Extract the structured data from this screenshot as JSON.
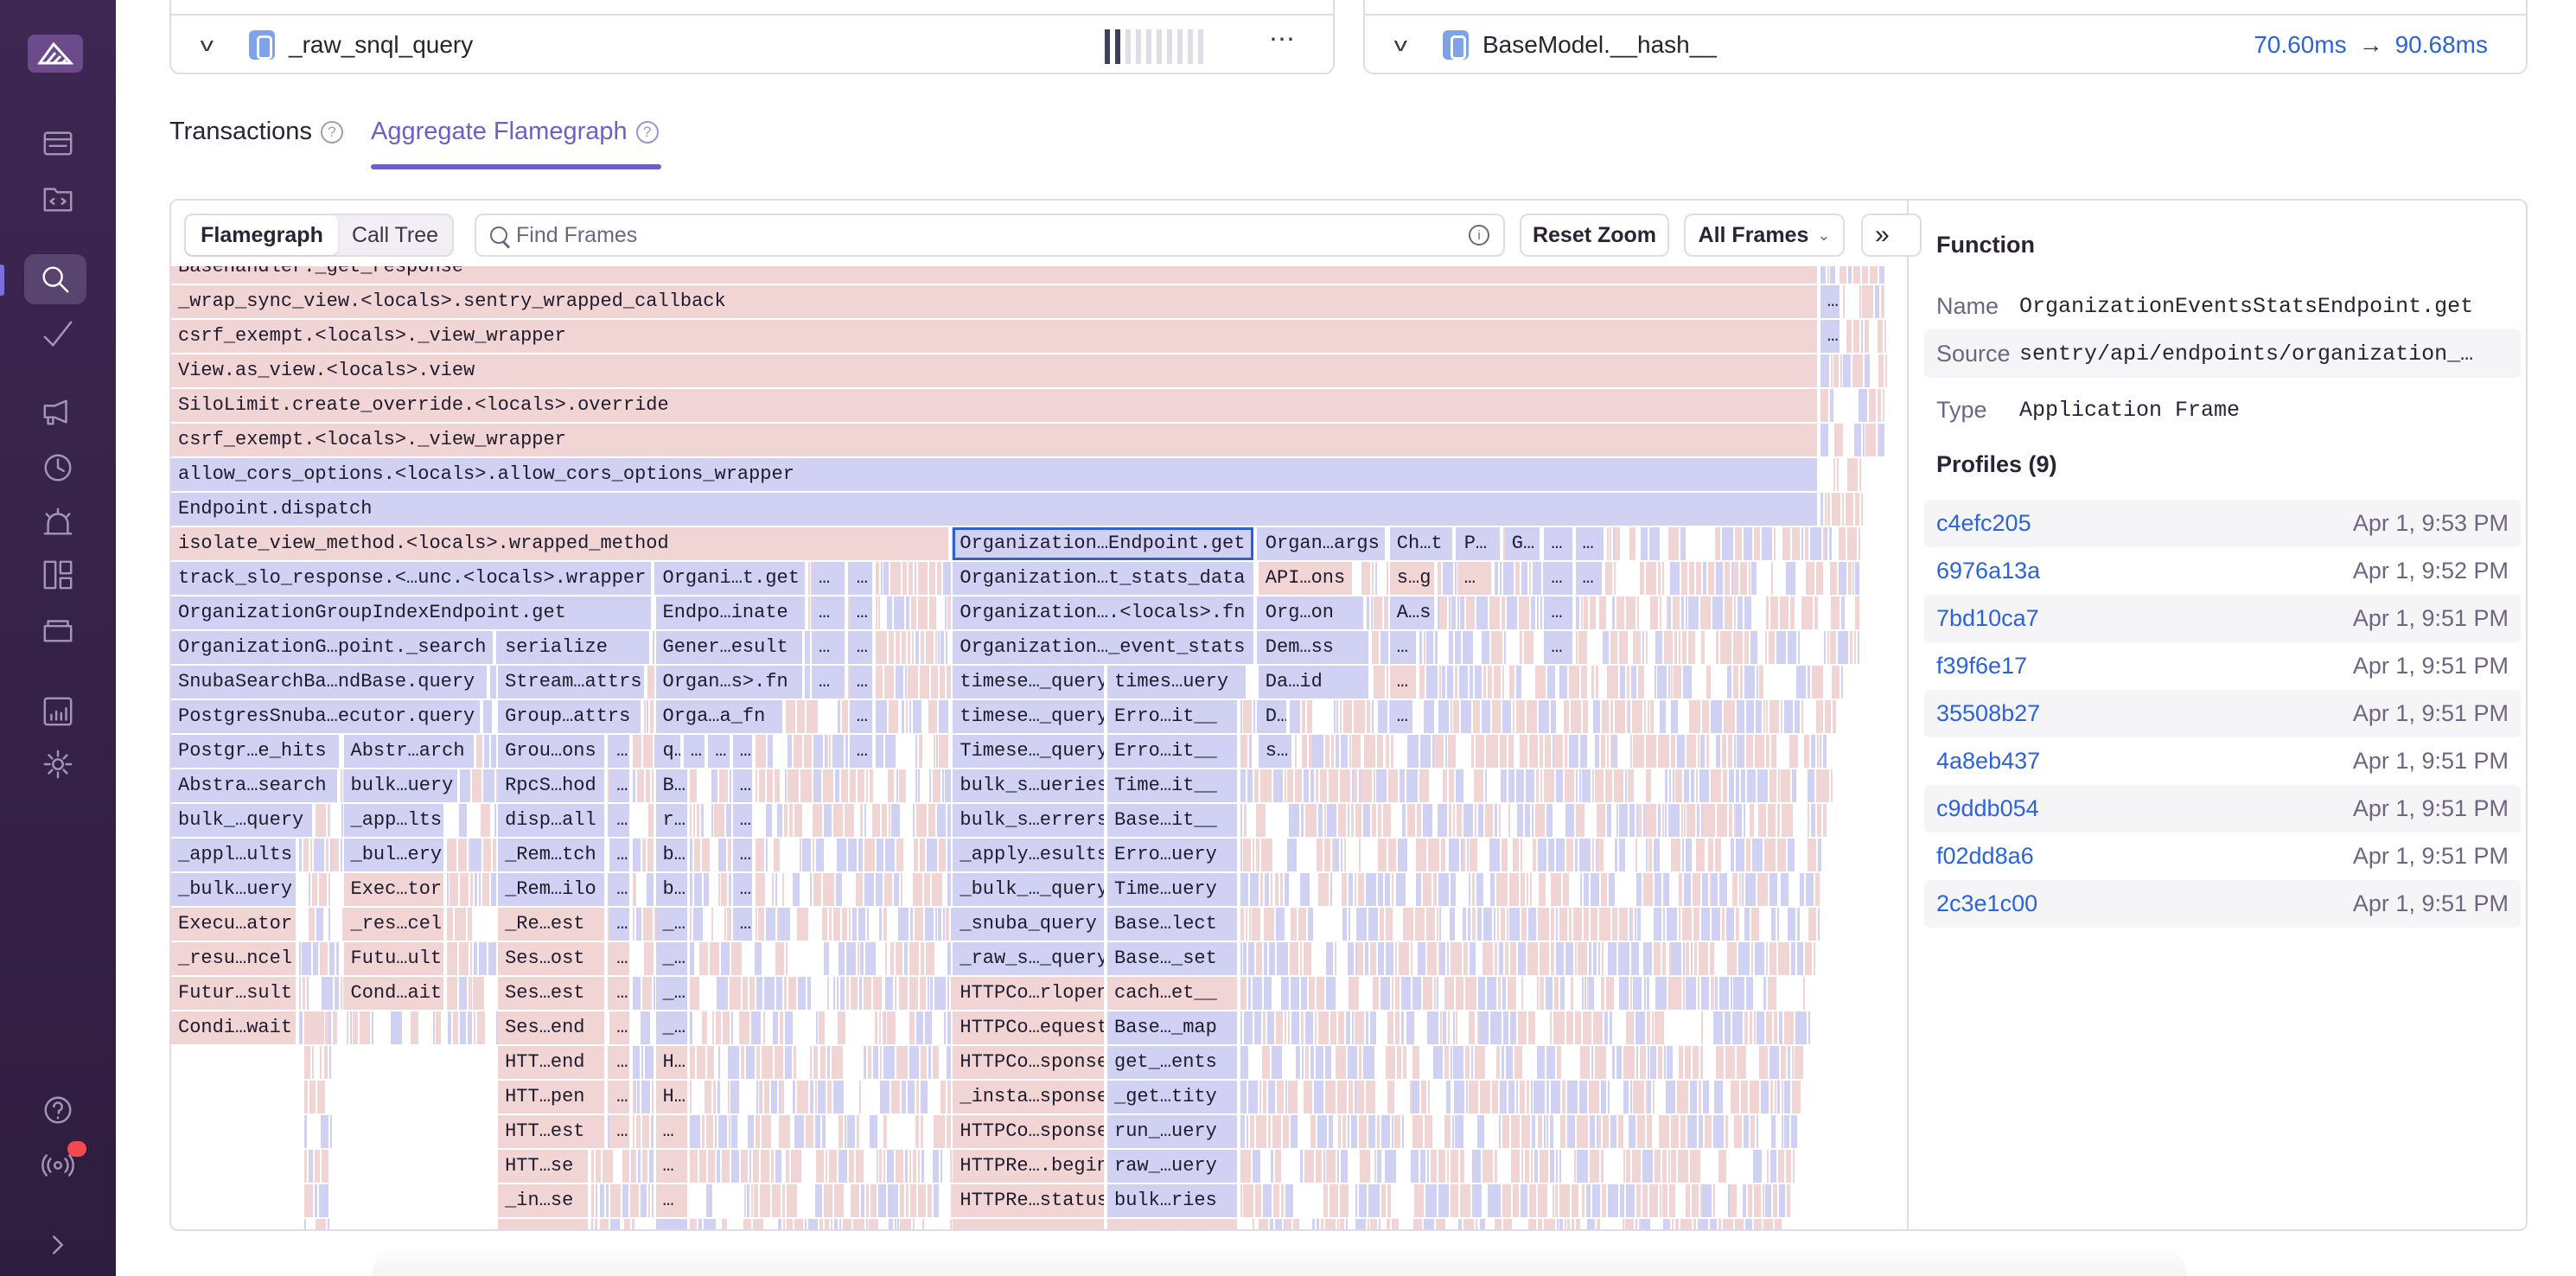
{
  "top_cards": [
    {
      "function": "_raw_snql_query",
      "icon": "python-icon",
      "more": "⋯"
    },
    {
      "function": "BaseModel.__hash__",
      "icon": "python-icon",
      "duration_before": "70.60ms",
      "arrow": "→",
      "duration_after": "90.68ms"
    }
  ],
  "tabs": [
    {
      "label": "Transactions",
      "help": "?",
      "active": false
    },
    {
      "label": "Aggregate Flamegraph",
      "help": "?",
      "active": true
    }
  ],
  "toolbar": {
    "view_options": [
      "Flamegraph",
      "Call Tree"
    ],
    "selected_view": "Flamegraph",
    "search_placeholder": "Find Frames",
    "search_value": "",
    "info": "i",
    "reset_zoom": "Reset Zoom",
    "frames_filter": "All Frames",
    "frames_filter_chevron": "⌄",
    "collapse": "»"
  },
  "colors": {
    "application_frame": "#f1d4d4",
    "system_frame": "#d1d1f3",
    "accent": "#6c5fc7",
    "link": "#2b63d9",
    "selected_frame_border": "#2f62d1"
  },
  "flamegraph": {
    "selected_frame": "OrganizationEventsStatsEndpoint.get",
    "rows": [
      [
        {
          "l": "BaseHandler._get_response",
          "k": "p"
        }
      ],
      [
        {
          "l": "_wrap_sync_view.<locals>.sentry_wrapped_callback",
          "k": "p"
        },
        {
          "l": "…",
          "k": "b"
        }
      ],
      [
        {
          "l": "csrf_exempt.<locals>._view_wrapper",
          "k": "p"
        },
        {
          "l": "…",
          "k": "b"
        }
      ],
      [
        {
          "l": "View.as_view.<locals>.view",
          "k": "p"
        }
      ],
      [
        {
          "l": "SiloLimit.create_override.<locals>.override",
          "k": "p"
        }
      ],
      [
        {
          "l": "csrf_exempt.<locals>._view_wrapper",
          "k": "p"
        }
      ],
      [
        {
          "l": "allow_cors_options.<locals>.allow_cors_options_wrapper",
          "k": "b"
        }
      ],
      [
        {
          "l": "Endpoint.dispatch",
          "k": "b"
        }
      ],
      [
        {
          "l": "isolate_view_method.<locals>.wrapped_method",
          "k": "p"
        },
        {
          "l": "Organization…Endpoint.get",
          "k": "b",
          "sel": true
        },
        {
          "l": "Organ…args",
          "k": "b"
        },
        {
          "l": "Ch…t",
          "k": "b"
        },
        {
          "l": "P…",
          "k": "b"
        },
        {
          "l": "G…",
          "k": "b"
        },
        {
          "l": "…",
          "k": "b"
        },
        {
          "l": "…",
          "k": "b"
        }
      ],
      [
        {
          "l": "track_slo_response.<…unc.<locals>.wrapper",
          "k": "b"
        },
        {
          "l": "Organi…t.get",
          "k": "b"
        },
        {
          "l": "…",
          "k": "b"
        },
        {
          "l": "…",
          "k": "b"
        },
        {
          "l": "Organization…t_stats_data",
          "k": "b"
        },
        {
          "l": "API…ons",
          "k": "p"
        },
        {
          "l": "s…g",
          "k": "p"
        },
        {
          "l": "…",
          "k": "p"
        },
        {
          "l": "…",
          "k": "b"
        },
        {
          "l": "…",
          "k": "b"
        }
      ],
      [
        {
          "l": "OrganizationGroupIndexEndpoint.get",
          "k": "b"
        },
        {
          "l": "Endpo…inate",
          "k": "b"
        },
        {
          "l": "…",
          "k": "b"
        },
        {
          "l": "…",
          "k": "b"
        },
        {
          "l": "Organization….<locals>.fn",
          "k": "b"
        },
        {
          "l": "Org…on",
          "k": "b"
        },
        {
          "l": "A…s",
          "k": "b"
        },
        {
          "l": "…",
          "k": "b"
        }
      ],
      [
        {
          "l": "OrganizationG…point._search",
          "k": "b"
        },
        {
          "l": "serialize",
          "k": "b"
        },
        {
          "l": "Gener…esult",
          "k": "b"
        },
        {
          "l": "…",
          "k": "b"
        },
        {
          "l": "…",
          "k": "b"
        },
        {
          "l": "Organization…_event_stats",
          "k": "b"
        },
        {
          "l": "Dem…ss",
          "k": "b"
        },
        {
          "l": "…",
          "k": "b"
        },
        {
          "l": "…",
          "k": "b"
        }
      ],
      [
        {
          "l": "SnubaSearchBa…ndBase.query",
          "k": "b"
        },
        {
          "l": "Stream…attrs",
          "k": "b"
        },
        {
          "l": "Organ…s>.fn",
          "k": "b"
        },
        {
          "l": "…",
          "k": "b"
        },
        {
          "l": "…",
          "k": "b"
        },
        {
          "l": "timese…_query",
          "k": "b"
        },
        {
          "l": "times…uery",
          "k": "b"
        },
        {
          "l": "Da…id",
          "k": "b"
        },
        {
          "l": "…",
          "k": "p"
        }
      ],
      [
        {
          "l": "PostgresSnuba…ecutor.query",
          "k": "b"
        },
        {
          "l": "Group…attrs",
          "k": "b"
        },
        {
          "l": "Orga…a_fn",
          "k": "b"
        },
        {
          "l": "…",
          "k": "b"
        },
        {
          "l": "timese…_query",
          "k": "b"
        },
        {
          "l": "Erro…it__",
          "k": "b"
        },
        {
          "l": "D…",
          "k": "b"
        },
        {
          "l": "…",
          "k": "b"
        }
      ],
      [
        {
          "l": "Postgr…e_hits",
          "k": "b"
        },
        {
          "l": "Abstr…arch",
          "k": "b"
        },
        {
          "l": "Grou…ons",
          "k": "b"
        },
        {
          "l": "…",
          "k": "b"
        },
        {
          "l": "q…",
          "k": "b"
        },
        {
          "l": "…",
          "k": "b"
        },
        {
          "l": "…",
          "k": "b"
        },
        {
          "l": "…",
          "k": "b"
        },
        {
          "l": "…",
          "k": "b"
        },
        {
          "l": "Timese…_query",
          "k": "b"
        },
        {
          "l": "Erro…it__",
          "k": "b"
        },
        {
          "l": "s…",
          "k": "b"
        }
      ],
      [
        {
          "l": "Abstra…search",
          "k": "b"
        },
        {
          "l": "bulk…uery",
          "k": "b"
        },
        {
          "l": "RpcS…hod",
          "k": "b"
        },
        {
          "l": "…",
          "k": "b"
        },
        {
          "l": "B…",
          "k": "b"
        },
        {
          "l": "…",
          "k": "b"
        },
        {
          "l": "bulk_s…ueries",
          "k": "b"
        },
        {
          "l": "Time…it__",
          "k": "b"
        }
      ],
      [
        {
          "l": "bulk_…query",
          "k": "b"
        },
        {
          "l": "_app…lts",
          "k": "b"
        },
        {
          "l": "disp…all",
          "k": "b"
        },
        {
          "l": "…",
          "k": "b"
        },
        {
          "l": "r…",
          "k": "b"
        },
        {
          "l": "…",
          "k": "b"
        },
        {
          "l": "bulk_s…errers",
          "k": "b"
        },
        {
          "l": "Base…it__",
          "k": "b"
        }
      ],
      [
        {
          "l": "_appl…ults",
          "k": "b"
        },
        {
          "l": "_bul…ery",
          "k": "b"
        },
        {
          "l": "_Rem…tch",
          "k": "b"
        },
        {
          "l": "…",
          "k": "b"
        },
        {
          "l": "b…",
          "k": "b"
        },
        {
          "l": "…",
          "k": "b"
        },
        {
          "l": "_apply…esults",
          "k": "b"
        },
        {
          "l": "Erro…uery",
          "k": "b"
        }
      ],
      [
        {
          "l": "_bulk…uery",
          "k": "b"
        },
        {
          "l": "Exec…tor",
          "k": "p"
        },
        {
          "l": "_Rem…ilo",
          "k": "b"
        },
        {
          "l": "…",
          "k": "b"
        },
        {
          "l": "b…",
          "k": "b"
        },
        {
          "l": "…",
          "k": "b"
        },
        {
          "l": "_bulk_…_query",
          "k": "b"
        },
        {
          "l": "Time…uery",
          "k": "b"
        }
      ],
      [
        {
          "l": "Execu…ator",
          "k": "p"
        },
        {
          "l": "_res…cel",
          "k": "p"
        },
        {
          "l": "_Re…est",
          "k": "p"
        },
        {
          "l": "…",
          "k": "b"
        },
        {
          "l": "_…",
          "k": "b"
        },
        {
          "l": "…",
          "k": "b"
        },
        {
          "l": "_snuba_query",
          "k": "b"
        },
        {
          "l": "Base…lect",
          "k": "b"
        }
      ],
      [
        {
          "l": "_resu…ncel",
          "k": "p"
        },
        {
          "l": "Futu…ult",
          "k": "p"
        },
        {
          "l": "Ses…ost",
          "k": "p"
        },
        {
          "l": "…",
          "k": "p"
        },
        {
          "l": "_…",
          "k": "b"
        },
        {
          "l": "_raw_s…_query",
          "k": "b"
        },
        {
          "l": "Base…_set",
          "k": "b"
        }
      ],
      [
        {
          "l": "Futur…sult",
          "k": "p"
        },
        {
          "l": "Cond…ait",
          "k": "p"
        },
        {
          "l": "Ses…est",
          "k": "p"
        },
        {
          "l": "…",
          "k": "p"
        },
        {
          "l": "_…",
          "k": "b"
        },
        {
          "l": "HTTPCo…rlopen",
          "k": "p"
        },
        {
          "l": "cach…et__",
          "k": "p"
        }
      ],
      [
        {
          "l": "Condi…wait",
          "k": "p"
        },
        {
          "l": "Ses…end",
          "k": "p"
        },
        {
          "l": "…",
          "k": "p"
        },
        {
          "l": "_…",
          "k": "b"
        },
        {
          "l": "HTTPCo…equest",
          "k": "p"
        },
        {
          "l": "Base…_map",
          "k": "b"
        }
      ],
      [
        {
          "l": "HTT…end",
          "k": "p"
        },
        {
          "l": "…",
          "k": "p"
        },
        {
          "l": "H…",
          "k": "p"
        },
        {
          "l": "HTTPCo…sponse",
          "k": "p"
        },
        {
          "l": "get_…ents",
          "k": "b"
        }
      ],
      [
        {
          "l": "HTT…pen",
          "k": "p"
        },
        {
          "l": "…",
          "k": "p"
        },
        {
          "l": "H…",
          "k": "p"
        },
        {
          "l": "_insta…sponse",
          "k": "p"
        },
        {
          "l": "_get…tity",
          "k": "b"
        }
      ],
      [
        {
          "l": "HTT…est",
          "k": "p"
        },
        {
          "l": "…",
          "k": "p"
        },
        {
          "l": "…",
          "k": "p"
        },
        {
          "l": "HTTPCo…sponse",
          "k": "p"
        },
        {
          "l": "run_…uery",
          "k": "b"
        }
      ],
      [
        {
          "l": "HTT…se",
          "k": "p"
        },
        {
          "l": "…",
          "k": "p"
        },
        {
          "l": "HTTPRe….begin",
          "k": "p"
        },
        {
          "l": "raw_…uery",
          "k": "b"
        }
      ],
      [
        {
          "l": "_in…se",
          "k": "p"
        },
        {
          "l": "…",
          "k": "p"
        },
        {
          "l": "HTTPRe…status",
          "k": "p"
        },
        {
          "l": "bulk…ries",
          "k": "b"
        }
      ],
      [
        {
          "l": "",
          "k": "p"
        },
        {
          "l": "",
          "k": "p"
        },
        {
          "l": "",
          "k": "p"
        },
        {
          "l": "",
          "k": "b"
        }
      ]
    ]
  },
  "detail": {
    "title": "Function",
    "fields": [
      {
        "key": "Name",
        "value": "OrganizationEventsStatsEndpoint.get"
      },
      {
        "key": "Source",
        "value": "sentry/api/endpoints/organization_…"
      },
      {
        "key": "Type",
        "value": "Application Frame"
      }
    ],
    "profiles_title": "Profiles (9)",
    "profiles": [
      {
        "id": "c4efc205",
        "time": "Apr 1, 9:53 PM"
      },
      {
        "id": "6976a13a",
        "time": "Apr 1, 9:52 PM"
      },
      {
        "id": "7bd10ca7",
        "time": "Apr 1, 9:51 PM"
      },
      {
        "id": "f39f6e17",
        "time": "Apr 1, 9:51 PM"
      },
      {
        "id": "35508b27",
        "time": "Apr 1, 9:51 PM"
      },
      {
        "id": "4a8eb437",
        "time": "Apr 1, 9:51 PM"
      },
      {
        "id": "c9ddb054",
        "time": "Apr 1, 9:51 PM"
      },
      {
        "id": "f02dd8a6",
        "time": "Apr 1, 9:51 PM"
      },
      {
        "id": "2c3e1c00",
        "time": "Apr 1, 9:51 PM"
      }
    ]
  },
  "sidebar": {
    "items": [
      "sentry-logo",
      "issues-icon",
      "projects-icon",
      "explore-icon",
      "insights-icon",
      "feedback-icon",
      "replays-icon",
      "alerts-icon",
      "dashboards-icon",
      "releases-icon",
      "stats-icon",
      "settings-icon",
      "help-icon",
      "broadcasts-icon",
      "collapse-icon"
    ],
    "active": "explore-icon"
  }
}
